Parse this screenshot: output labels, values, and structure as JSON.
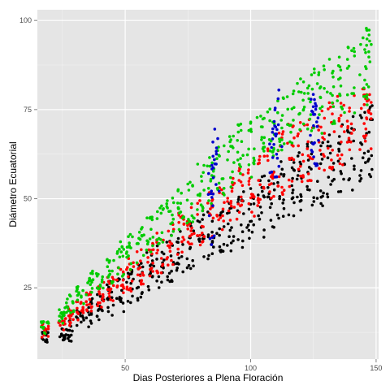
{
  "chart_data": {
    "type": "scatter",
    "xlabel": "Dias Posteriores a Plena Floración",
    "ylabel": "Diámetro Ecuatorial",
    "xlim": [
      15,
      151
    ],
    "ylim": [
      5,
      103
    ],
    "x_ticks": [
      50,
      100,
      150
    ],
    "y_ticks": [
      25,
      50,
      75,
      100
    ],
    "grid": true,
    "legend": "none",
    "background": "#e5e5e5",
    "series": [
      {
        "color": "#000000",
        "x": [
          18,
          25,
          28,
          32,
          36,
          40,
          44,
          48,
          52,
          56,
          60,
          64,
          68,
          72,
          76,
          80,
          84,
          88,
          92,
          96,
          100,
          104,
          108,
          112,
          116,
          120,
          124,
          128,
          132,
          136,
          140,
          145,
          147
        ],
        "y": [
          11,
          12,
          13,
          16,
          18,
          20,
          22,
          23,
          25,
          27,
          29,
          31,
          33,
          35,
          37,
          39,
          41,
          42,
          42,
          44,
          45,
          48,
          50,
          52,
          54,
          56,
          57,
          58,
          60,
          62,
          63,
          65,
          66
        ],
        "spread": [
          2,
          2,
          3,
          3,
          4,
          4,
          5,
          5,
          5,
          6,
          6,
          6,
          7,
          7,
          7,
          7,
          8,
          7,
          7,
          8,
          8,
          9,
          9,
          9,
          9,
          10,
          10,
          10,
          10,
          11,
          11,
          11,
          11
        ]
      },
      {
        "color": "#ff0000",
        "x": [
          18,
          25,
          28,
          32,
          36,
          40,
          44,
          48,
          52,
          56,
          60,
          64,
          68,
          72,
          76,
          80,
          84,
          88,
          92,
          96,
          100,
          104,
          108,
          112,
          116,
          120,
          124,
          128,
          132,
          136,
          140,
          145,
          147
        ],
        "y": [
          13,
          15,
          17,
          19,
          21,
          23,
          25,
          27,
          29,
          31,
          33,
          35,
          37,
          40,
          42,
          44,
          46,
          48,
          50,
          52,
          53,
          56,
          58,
          60,
          62,
          63,
          64,
          66,
          68,
          69,
          70,
          72,
          73
        ],
        "spread": [
          2,
          2,
          3,
          3,
          3,
          4,
          4,
          4,
          5,
          5,
          5,
          6,
          6,
          6,
          6,
          7,
          7,
          7,
          7,
          8,
          8,
          8,
          8,
          9,
          9,
          9,
          9,
          10,
          10,
          10,
          10,
          10,
          10
        ]
      },
      {
        "color": "#00cc00",
        "x": [
          18,
          25,
          28,
          32,
          36,
          40,
          44,
          48,
          52,
          56,
          60,
          64,
          68,
          72,
          76,
          80,
          84,
          88,
          92,
          96,
          100,
          104,
          108,
          112,
          116,
          120,
          124,
          128,
          132,
          136,
          140,
          145,
          147
        ],
        "y": [
          14,
          18,
          20,
          23,
          26,
          28,
          30,
          33,
          35,
          37,
          40,
          42,
          45,
          47,
          50,
          53,
          55,
          58,
          60,
          63,
          64,
          67,
          70,
          71,
          73,
          75,
          77,
          78,
          80,
          82,
          84,
          86,
          88
        ],
        "spread": [
          2,
          3,
          3,
          3,
          4,
          4,
          4,
          5,
          5,
          5,
          5,
          6,
          6,
          6,
          7,
          7,
          7,
          7,
          8,
          8,
          8,
          8,
          9,
          9,
          9,
          9,
          10,
          10,
          10,
          10,
          10,
          10,
          10
        ]
      },
      {
        "color": "#0000cc",
        "x": [
          84,
          86,
          109,
          111,
          125,
          126
        ],
        "y": [
          48,
          60,
          67,
          70,
          66,
          70
        ],
        "spread": [
          12,
          12,
          11,
          11,
          12,
          12
        ]
      }
    ]
  }
}
